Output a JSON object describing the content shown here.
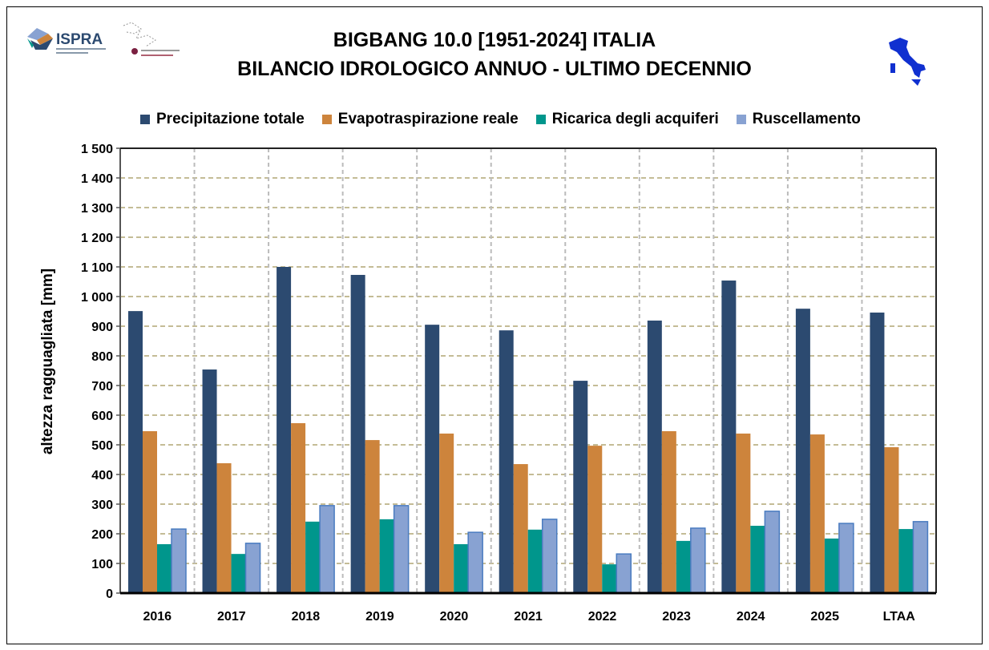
{
  "header": {
    "logo_ispra": "ISPRA",
    "logo_partner": "partner logo"
  },
  "chart_data": {
    "type": "bar",
    "title": "BIGBANG 10.0 [1951-2024] ITALIA",
    "subtitle": "BILANCIO IDROLOGICO ANNUO - ULTIMO DECENNIO",
    "xlabel": "",
    "ylabel": "altezza ragguagliata [mm]",
    "ylim": [
      0,
      1500
    ],
    "yticks": [
      0,
      100,
      200,
      300,
      400,
      500,
      600,
      700,
      800,
      900,
      1000,
      1100,
      1200,
      1300,
      1400,
      1500
    ],
    "ytick_labels": [
      "0",
      "100",
      "200",
      "300",
      "400",
      "500",
      "600",
      "700",
      "800",
      "900",
      "1 000",
      "1 100",
      "1 200",
      "1 300",
      "1 400",
      "1 500"
    ],
    "categories": [
      "2016",
      "2017",
      "2018",
      "2019",
      "2020",
      "2021",
      "2022",
      "2023",
      "2024",
      "2025",
      "LTAA"
    ],
    "legend_position": "top",
    "grid": true,
    "series": [
      {
        "name": "Precipitazione totale",
        "color": "#2c4a70",
        "values": [
          951,
          754,
          1100,
          1073,
          905,
          886,
          716,
          919,
          1054,
          959,
          946
        ]
      },
      {
        "name": "Evapotraspirazione reale",
        "color": "#cd843c",
        "values": [
          546,
          438,
          573,
          516,
          538,
          435,
          497,
          546,
          538,
          535,
          492
        ]
      },
      {
        "name": "Ricarica degli acquiferi",
        "color": "#00968c",
        "values": [
          165,
          132,
          241,
          249,
          165,
          214,
          97,
          176,
          227,
          184,
          216
        ]
      },
      {
        "name": "Ruscellamento",
        "color": "#88a2d2",
        "values": [
          216,
          168,
          295,
          295,
          205,
          249,
          132,
          219,
          276,
          235,
          241
        ]
      }
    ]
  }
}
